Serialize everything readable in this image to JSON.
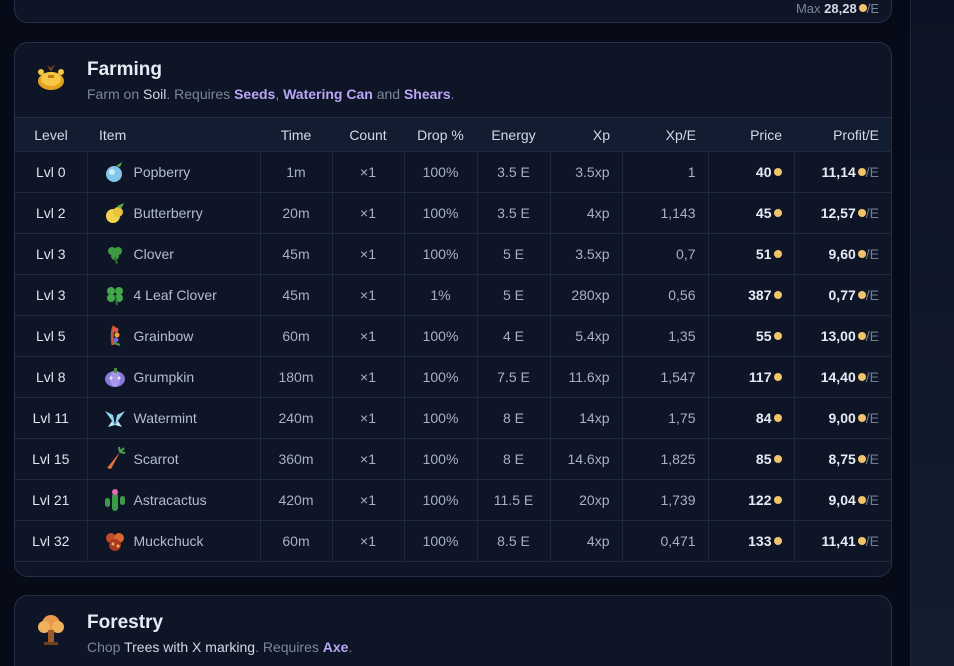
{
  "previous_card": {
    "max_label": "Max",
    "max_value": "28,28",
    "max_unit": "/E"
  },
  "farming": {
    "title": "Farming",
    "subtitle": {
      "p1": "Farm on ",
      "soil": "Soil",
      "p2": ". Requires ",
      "req1": "Seeds",
      "comma": ", ",
      "req2": "Watering Can",
      "and": " and ",
      "req3": "Shears",
      "end": "."
    },
    "columns": [
      "Level",
      "Item",
      "Time",
      "Count",
      "Drop %",
      "Energy",
      "Xp",
      "Xp/E",
      "Price",
      "Profit/E"
    ],
    "rows": [
      {
        "level": "Lvl 0",
        "item": "Popberry",
        "icon": "popberry-icon",
        "time": "1m",
        "count": "×1",
        "drop": "100%",
        "energy": "3.5 E",
        "xp": "3.5xp",
        "xpe": "1",
        "price": "40",
        "profit": "11,14",
        "unit": "/E"
      },
      {
        "level": "Lvl 2",
        "item": "Butterberry",
        "icon": "butterberry-icon",
        "time": "20m",
        "count": "×1",
        "drop": "100%",
        "energy": "3.5 E",
        "xp": "4xp",
        "xpe": "1,143",
        "price": "45",
        "profit": "12,57",
        "unit": "/E"
      },
      {
        "level": "Lvl 3",
        "item": "Clover",
        "icon": "clover-icon",
        "time": "45m",
        "count": "×1",
        "drop": "100%",
        "energy": "5 E",
        "xp": "3.5xp",
        "xpe": "0,7",
        "price": "51",
        "profit": "9,60",
        "unit": "/E"
      },
      {
        "level": "Lvl 3",
        "item": "4 Leaf Clover",
        "icon": "four-leaf-clover-icon",
        "time": "45m",
        "count": "×1",
        "drop": "1%",
        "energy": "5 E",
        "xp": "280xp",
        "xpe": "0,56",
        "price": "387",
        "profit": "0,77",
        "unit": "/E"
      },
      {
        "level": "Lvl 5",
        "item": "Grainbow",
        "icon": "grainbow-icon",
        "time": "60m",
        "count": "×1",
        "drop": "100%",
        "energy": "4 E",
        "xp": "5.4xp",
        "xpe": "1,35",
        "price": "55",
        "profit": "13,00",
        "unit": "/E"
      },
      {
        "level": "Lvl 8",
        "item": "Grumpkin",
        "icon": "grumpkin-icon",
        "time": "180m",
        "count": "×1",
        "drop": "100%",
        "energy": "7.5 E",
        "xp": "11.6xp",
        "xpe": "1,547",
        "price": "117",
        "profit": "14,40",
        "unit": "/E"
      },
      {
        "level": "Lvl 11",
        "item": "Watermint",
        "icon": "watermint-icon",
        "time": "240m",
        "count": "×1",
        "drop": "100%",
        "energy": "8 E",
        "xp": "14xp",
        "xpe": "1,75",
        "price": "84",
        "profit": "9,00",
        "unit": "/E"
      },
      {
        "level": "Lvl 15",
        "item": "Scarrot",
        "icon": "scarrot-icon",
        "time": "360m",
        "count": "×1",
        "drop": "100%",
        "energy": "8 E",
        "xp": "14.6xp",
        "xpe": "1,825",
        "price": "85",
        "profit": "8,75",
        "unit": "/E"
      },
      {
        "level": "Lvl 21",
        "item": "Astracactus",
        "icon": "astracactus-icon",
        "time": "420m",
        "count": "×1",
        "drop": "100%",
        "energy": "11.5 E",
        "xp": "20xp",
        "xpe": "1,739",
        "price": "122",
        "profit": "9,04",
        "unit": "/E"
      },
      {
        "level": "Lvl 32",
        "item": "Muckchuck",
        "icon": "muckchuck-icon",
        "time": "60m",
        "count": "×1",
        "drop": "100%",
        "energy": "8.5 E",
        "xp": "4xp",
        "xpe": "0,471",
        "price": "133",
        "profit": "11,41",
        "unit": "/E"
      }
    ]
  },
  "forestry": {
    "title": "Forestry",
    "subtitle": {
      "p1": "Chop ",
      "hl": "Trees with X marking",
      "p2": ". Requires ",
      "req1": "Axe",
      "end": "."
    }
  },
  "colors": {
    "background": "#060b17",
    "card": "#0d1526",
    "accent_purple": "#b9a7f5",
    "coin": "#f1c46a"
  }
}
